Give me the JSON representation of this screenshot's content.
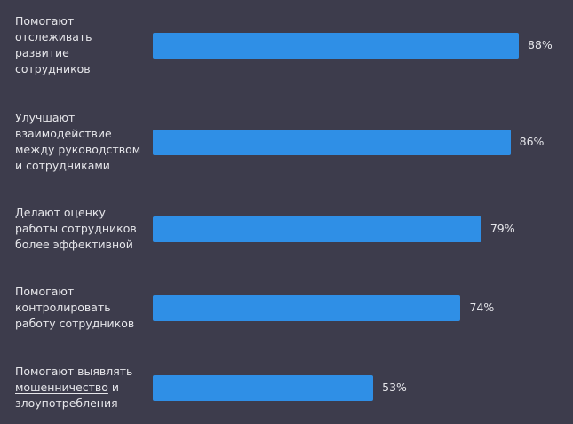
{
  "chart_data": {
    "type": "bar",
    "orientation": "horizontal",
    "bar_color": "#2f8fe6",
    "value_suffix": "%",
    "xlim": [
      0,
      100
    ],
    "categories": [
      [
        "Помогают",
        "отслеживать",
        "развитие",
        "сотрудников"
      ],
      [
        "Улучшают",
        "взаимодействие",
        "между руководством",
        "и сотрудниками"
      ],
      [
        "Делают оценку",
        "работы сотрудников",
        "более эффективной"
      ],
      [
        "Помогают",
        "контролировать",
        "работу сотрудников"
      ],
      [
        "Помогают выявлять",
        "мошенничество и",
        "злоупотребления"
      ]
    ],
    "values": [
      88,
      86,
      79,
      74,
      53
    ],
    "value_labels": [
      "88%",
      "86%",
      "79%",
      "74%",
      "53%"
    ],
    "underlined_words": [
      "мошенничество"
    ]
  }
}
